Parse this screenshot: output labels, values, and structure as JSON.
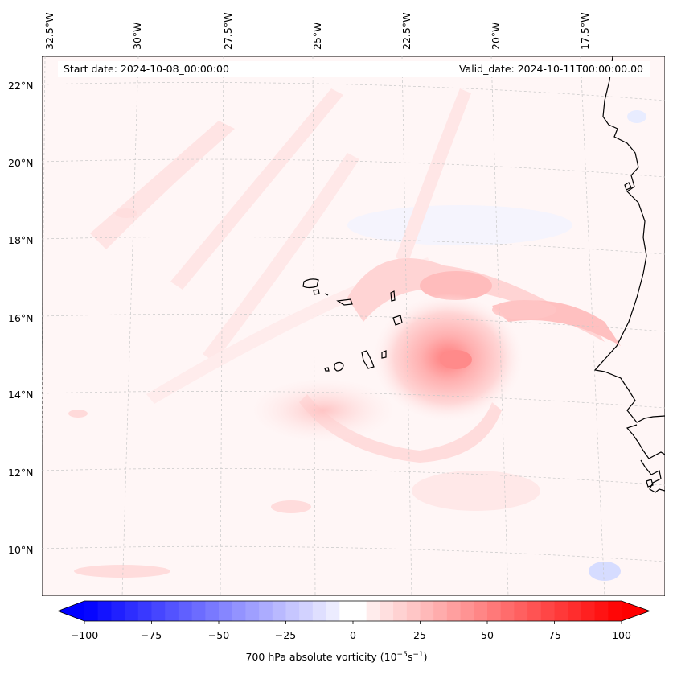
{
  "map": {
    "start_date": "Start date: 2024-10-08_00:00:00",
    "valid_date": "Valid_date: 2024-10-11T00:00:00.00",
    "lon_labels": [
      "32.5°W",
      "30°W",
      "27.5°W",
      "25°W",
      "22.5°W",
      "20°W",
      "17.5°W"
    ],
    "lat_labels": [
      "22°N",
      "20°N",
      "18°N",
      "16°N",
      "14°N",
      "12°N",
      "10°N"
    ],
    "colors": {
      "negative": "#0000ff",
      "zero": "#ffffff",
      "positive": "#ff0000",
      "coast": "#000000",
      "grid": "#bbbbbb"
    }
  },
  "colorbar": {
    "ticks": [
      "−100",
      "−75",
      "−50",
      "−25",
      "0",
      "25",
      "50",
      "75",
      "100"
    ],
    "label_main": "700 hPa absolute vorticity (10",
    "label_exp1": "−5",
    "label_mid": "s",
    "label_exp2": "−1",
    "label_end": ")",
    "min": -100,
    "max": 100
  }
}
